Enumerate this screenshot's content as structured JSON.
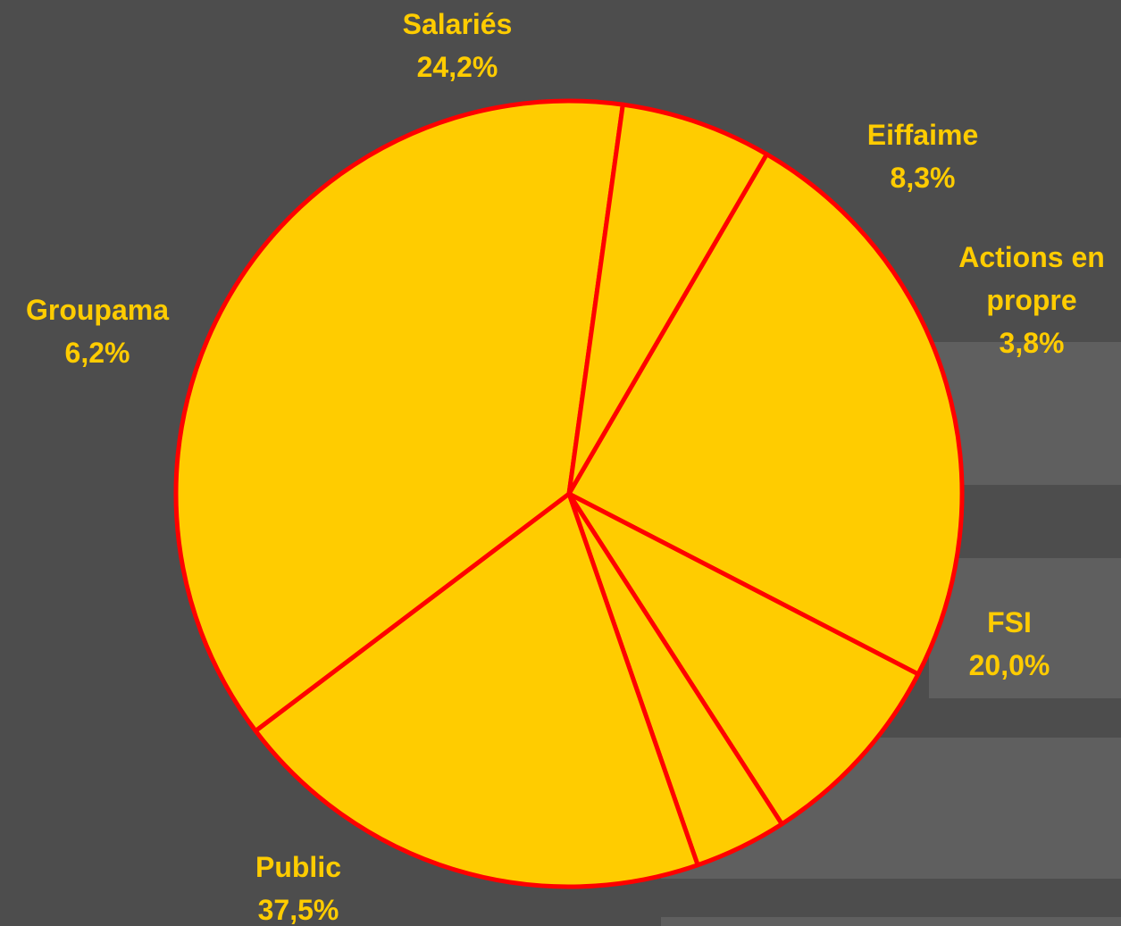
{
  "colors": {
    "background": "#4d4d4d",
    "band": "#5f5f5f",
    "slice_fill": "#ffcc00",
    "slice_stroke": "#ff0000",
    "label": "#ffcc00"
  },
  "chart_data": {
    "type": "pie",
    "slices": [
      {
        "label": "Salariés",
        "value": 24.2,
        "text": "24,2%"
      },
      {
        "label": "Eiffaime",
        "value": 8.3,
        "text": "8,3%"
      },
      {
        "label": "Actions en propre",
        "value": 3.8,
        "text": "3,8%"
      },
      {
        "label": "FSI",
        "value": 20.0,
        "text": "20,0%"
      },
      {
        "label": "Public",
        "value": 37.5,
        "text": "37,5%"
      },
      {
        "label": "Groupama",
        "value": 6.2,
        "text": "6,2%"
      }
    ]
  }
}
